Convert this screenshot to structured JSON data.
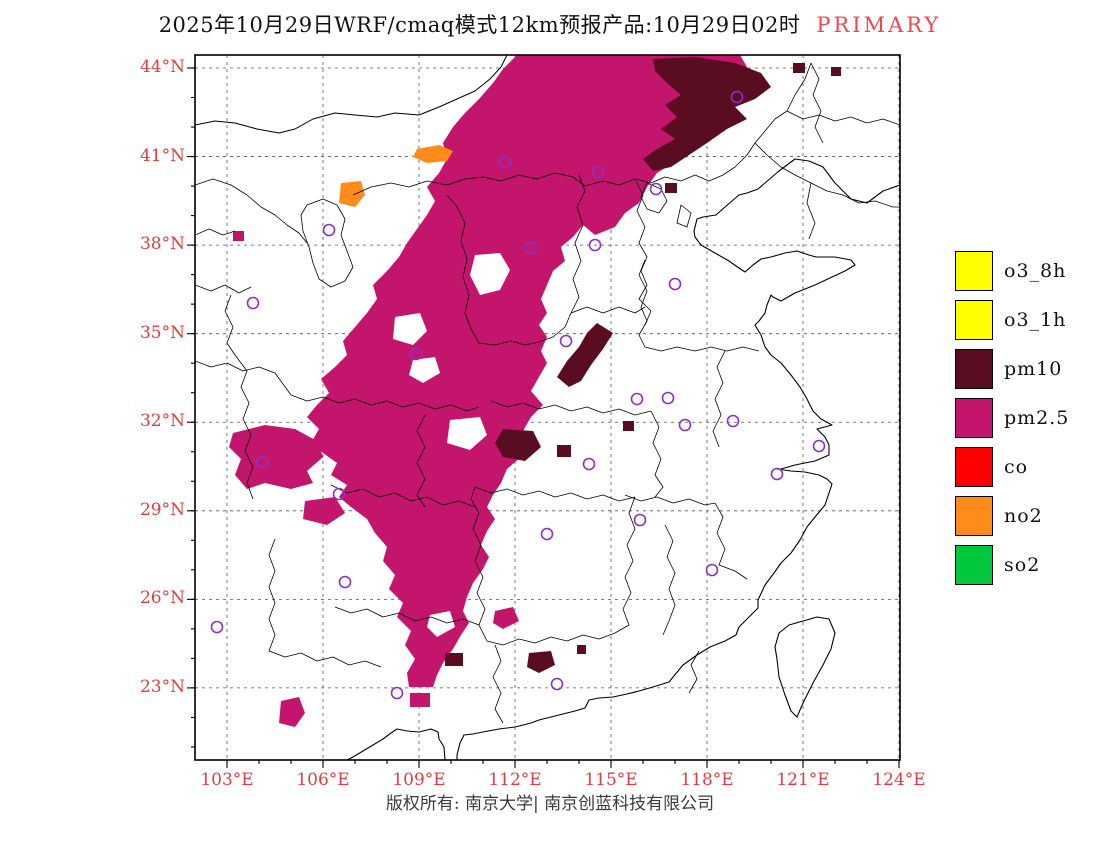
{
  "title": {
    "text": "2025年10月29日WRF/cmaq模式12km预报产品:10月29日02时",
    "tag": "PRIMARY",
    "tag_color": "#f7434e"
  },
  "map": {
    "x_ticks": [
      "103°E",
      "106°E",
      "109°E",
      "112°E",
      "115°E",
      "118°E",
      "121°E",
      "124°E"
    ],
    "y_ticks": [
      "44°N",
      "41°N",
      "38°N",
      "35°N",
      "32°N",
      "29°N",
      "26°N",
      "23°N"
    ],
    "axis_label_color": "#e13d3d",
    "marker_color": "#8b2fc9"
  },
  "legend": {
    "items": [
      {
        "label": "o3_8h",
        "color": "#ffff00"
      },
      {
        "label": "o3_1h",
        "color": "#ffff00"
      },
      {
        "label": "pm10",
        "color": "#5a0c20"
      },
      {
        "label": "pm2.5",
        "color": "#c4156d"
      },
      {
        "label": "co",
        "color": "#ff0000"
      },
      {
        "label": "no2",
        "color": "#ff8c1a"
      },
      {
        "label": "so2",
        "color": "#00c83c"
      }
    ]
  },
  "footer": {
    "text": "版权所有: 南京大学| 南京创蓝科技有限公司"
  }
}
